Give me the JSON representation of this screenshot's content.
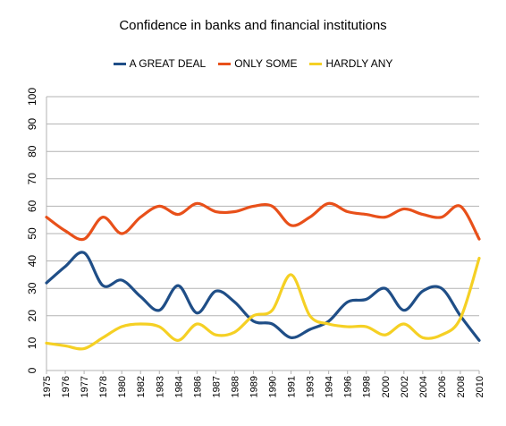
{
  "chart_data": {
    "type": "line",
    "title": "Confidence in banks and financial institutions",
    "xlabel": "",
    "ylabel": "",
    "ylim": [
      0,
      100
    ],
    "yticks": [
      0,
      10,
      20,
      30,
      40,
      50,
      60,
      70,
      80,
      90,
      100
    ],
    "grid": "horizontal",
    "legend": "top",
    "categories": [
      "1975",
      "1976",
      "1977",
      "1978",
      "1980",
      "1982",
      "1983",
      "1984",
      "1986",
      "1987",
      "1988",
      "1989",
      "1990",
      "1991",
      "1993",
      "1994",
      "1996",
      "1998",
      "2000",
      "2002",
      "2004",
      "2006",
      "2008",
      "2010"
    ],
    "series": [
      {
        "name": "A GREAT DEAL",
        "color": "#1f4e87",
        "values": [
          32,
          38,
          43,
          31,
          33,
          27,
          22,
          31,
          21,
          29,
          25,
          18,
          17,
          12,
          15,
          18,
          25,
          26,
          30,
          22,
          29,
          30,
          20,
          11
        ]
      },
      {
        "name": "ONLY SOME",
        "color": "#e8501a",
        "values": [
          56,
          51,
          48,
          56,
          50,
          56,
          60,
          57,
          61,
          58,
          58,
          60,
          60,
          53,
          56,
          61,
          58,
          57,
          56,
          59,
          57,
          56,
          60,
          48
        ]
      },
      {
        "name": "HARDLY ANY",
        "color": "#f5d024",
        "values": [
          10,
          9,
          8,
          12,
          16,
          17,
          16,
          11,
          17,
          13,
          14,
          20,
          22,
          35,
          20,
          17,
          16,
          16,
          13,
          17,
          12,
          13,
          19,
          41
        ]
      }
    ]
  }
}
